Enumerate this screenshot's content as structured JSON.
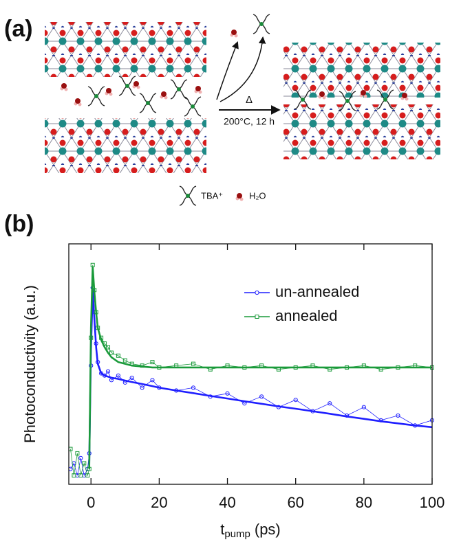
{
  "figure_a": {
    "label": "(a)",
    "arrow_symbol": "Δ",
    "condition": "200°C, 12 h",
    "legend": {
      "tba": "TBA⁺",
      "water": "H₂O"
    }
  },
  "chart_data": {
    "type": "line",
    "panel_label": "(b)",
    "ylabel": "Photoconductivity (a.u.)",
    "xlabel": {
      "main": "t",
      "sub": "pump",
      "unit": "(ps)"
    },
    "yscale": "log",
    "xlim": [
      -6.5,
      100
    ],
    "xticks": [
      0,
      20,
      40,
      60,
      80,
      100
    ],
    "ylim": [
      0.034,
      2.8
    ],
    "legend": "upper right",
    "x": [
      -6,
      -5,
      -4,
      -3,
      -2,
      -1,
      -0.5,
      0,
      0.5,
      1,
      1.5,
      2,
      3,
      4,
      5,
      6,
      8,
      10,
      12,
      15,
      18,
      20,
      25,
      30,
      35,
      40,
      45,
      50,
      55,
      60,
      65,
      70,
      75,
      80,
      85,
      90,
      95,
      100
    ],
    "series": [
      {
        "name": "un-annealed",
        "color": "#1f1fff",
        "marker": "circle",
        "values": [
          0.045,
          0.05,
          0.04,
          0.055,
          0.04,
          0.045,
          0.06,
          0.3,
          1.25,
          0.8,
          0.45,
          0.32,
          0.26,
          0.25,
          0.27,
          0.23,
          0.25,
          0.22,
          0.24,
          0.2,
          0.23,
          0.2,
          0.19,
          0.2,
          0.17,
          0.18,
          0.15,
          0.17,
          0.14,
          0.16,
          0.13,
          0.15,
          0.12,
          0.14,
          0.11,
          0.12,
          0.1,
          0.11
        ],
        "fit": [
          null,
          null,
          null,
          null,
          null,
          null,
          0.05,
          0.4,
          1.2,
          0.7,
          0.42,
          0.31,
          0.26,
          0.25,
          0.245,
          0.24,
          0.235,
          0.228,
          0.222,
          0.214,
          0.206,
          0.2,
          0.19,
          0.181,
          0.172,
          0.164,
          0.156,
          0.149,
          0.142,
          0.136,
          0.13,
          0.124,
          0.118,
          0.113,
          0.108,
          0.104,
          0.1,
          0.097
        ]
      },
      {
        "name": "annealed",
        "color": "#1a9a3a",
        "marker": "square",
        "values": [
          0.065,
          0.04,
          0.06,
          0.04,
          0.05,
          0.04,
          0.045,
          0.5,
          1.9,
          1.2,
          0.8,
          0.6,
          0.5,
          0.45,
          0.42,
          0.38,
          0.36,
          0.33,
          0.31,
          0.3,
          0.32,
          0.29,
          0.3,
          0.31,
          0.28,
          0.3,
          0.29,
          0.3,
          0.28,
          0.29,
          0.3,
          0.28,
          0.29,
          0.3,
          0.28,
          0.29,
          0.3,
          0.29
        ],
        "fit": [
          null,
          null,
          null,
          null,
          null,
          null,
          0.045,
          0.6,
          1.85,
          1.15,
          0.8,
          0.6,
          0.48,
          0.42,
          0.38,
          0.35,
          0.32,
          0.31,
          0.3,
          0.295,
          0.29,
          0.29,
          0.29,
          0.29,
          0.29,
          0.29,
          0.29,
          0.29,
          0.29,
          0.29,
          0.29,
          0.29,
          0.29,
          0.29,
          0.29,
          0.29,
          0.29,
          0.29
        ]
      }
    ]
  }
}
